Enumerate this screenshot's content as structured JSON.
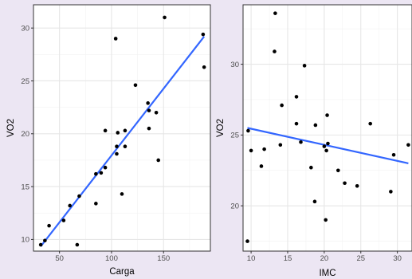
{
  "colors": {
    "page_background": "#ece6f3",
    "panel_background": "#ffffff",
    "grid_major": "#e6e6e6",
    "grid_minor": "#f2f2f2",
    "panel_border": "#333333",
    "point": "#000000",
    "fit_line": "#3366ff",
    "tick_text": "#4d4d4d",
    "axis_title": "#000000"
  },
  "chart_data": [
    {
      "type": "scatter",
      "title": "",
      "xlabel": "Carga",
      "ylabel": "VO2",
      "xlim": [
        25,
        195
      ],
      "ylim": [
        8.9,
        32.2
      ],
      "xticks": [
        50,
        100,
        150
      ],
      "xtick_labels": [
        "50",
        "100",
        "150"
      ],
      "yticks": [
        10,
        15,
        20,
        25,
        30
      ],
      "ytick_labels": [
        "10",
        "15",
        "20",
        "25",
        "30"
      ],
      "grid": true,
      "legend": "none",
      "points": [
        {
          "x": 32,
          "y": 9.5
        },
        {
          "x": 36,
          "y": 9.9
        },
        {
          "x": 40,
          "y": 11.3
        },
        {
          "x": 54,
          "y": 11.8
        },
        {
          "x": 60,
          "y": 13.2
        },
        {
          "x": 67,
          "y": 9.5
        },
        {
          "x": 69,
          "y": 14.1
        },
        {
          "x": 85,
          "y": 16.2
        },
        {
          "x": 85,
          "y": 13.4
        },
        {
          "x": 90,
          "y": 16.3
        },
        {
          "x": 94,
          "y": 16.8
        },
        {
          "x": 94,
          "y": 20.3
        },
        {
          "x": 104,
          "y": 29.0
        },
        {
          "x": 105,
          "y": 18.1
        },
        {
          "x": 105,
          "y": 18.8
        },
        {
          "x": 106,
          "y": 20.1
        },
        {
          "x": 110,
          "y": 14.3
        },
        {
          "x": 113,
          "y": 18.8
        },
        {
          "x": 113,
          "y": 20.3
        },
        {
          "x": 123,
          "y": 24.6
        },
        {
          "x": 135,
          "y": 22.9
        },
        {
          "x": 136,
          "y": 20.5
        },
        {
          "x": 136,
          "y": 22.2
        },
        {
          "x": 143,
          "y": 22.0
        },
        {
          "x": 145,
          "y": 17.5
        },
        {
          "x": 151,
          "y": 31.0
        },
        {
          "x": 188,
          "y": 29.4
        },
        {
          "x": 189,
          "y": 26.3
        }
      ],
      "fit_line": {
        "method": "linear",
        "x": [
          32,
          189
        ],
        "y": [
          9.35,
          29.2
        ]
      }
    },
    {
      "type": "scatter",
      "title": "",
      "xlabel": "IMC",
      "ylabel": "VO2",
      "xlim": [
        8.9,
        32.0
      ],
      "ylim": [
        16.8,
        34.2
      ],
      "xticks": [
        10,
        15,
        20,
        25,
        30
      ],
      "xtick_labels": [
        "10",
        "15",
        "20",
        "25",
        "30"
      ],
      "yticks": [
        20,
        25,
        30
      ],
      "ytick_labels": [
        "20",
        "25",
        "30"
      ],
      "grid": true,
      "legend": "none",
      "points": [
        {
          "x": 9.5,
          "y": 17.5
        },
        {
          "x": 9.6,
          "y": 25.3
        },
        {
          "x": 10.0,
          "y": 23.9
        },
        {
          "x": 11.4,
          "y": 22.8
        },
        {
          "x": 11.8,
          "y": 24.0
        },
        {
          "x": 13.2,
          "y": 30.9
        },
        {
          "x": 13.3,
          "y": 33.6
        },
        {
          "x": 14.0,
          "y": 24.3
        },
        {
          "x": 14.2,
          "y": 27.1
        },
        {
          "x": 16.2,
          "y": 27.7
        },
        {
          "x": 16.2,
          "y": 25.8
        },
        {
          "x": 16.8,
          "y": 24.5
        },
        {
          "x": 17.3,
          "y": 29.9
        },
        {
          "x": 18.2,
          "y": 22.7
        },
        {
          "x": 18.7,
          "y": 20.3
        },
        {
          "x": 18.8,
          "y": 25.7
        },
        {
          "x": 20.0,
          "y": 24.2
        },
        {
          "x": 20.2,
          "y": 19.0
        },
        {
          "x": 20.3,
          "y": 23.9
        },
        {
          "x": 20.4,
          "y": 26.4
        },
        {
          "x": 20.5,
          "y": 24.4
        },
        {
          "x": 21.9,
          "y": 22.5
        },
        {
          "x": 22.8,
          "y": 21.6
        },
        {
          "x": 24.5,
          "y": 21.4
        },
        {
          "x": 26.3,
          "y": 25.8
        },
        {
          "x": 29.1,
          "y": 21.0
        },
        {
          "x": 29.5,
          "y": 23.6
        },
        {
          "x": 31.5,
          "y": 24.3
        }
      ],
      "fit_line": {
        "method": "linear",
        "x": [
          9.5,
          31.5
        ],
        "y": [
          25.5,
          23.0
        ]
      }
    }
  ]
}
